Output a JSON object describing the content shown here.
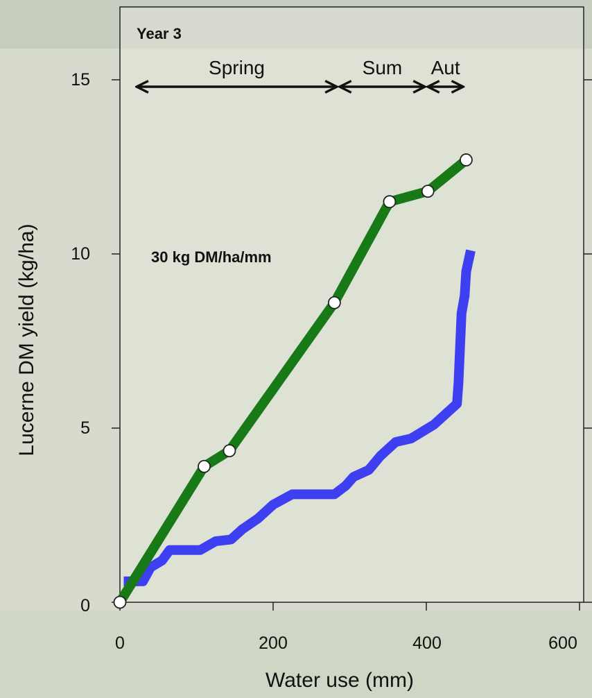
{
  "chart_data": {
    "type": "line",
    "title": "",
    "xlabel": "Water use (mm)",
    "ylabel": "Lucerne DM yield (kg/ha)",
    "xlim": [
      0,
      600
    ],
    "ylim": [
      0,
      15
    ],
    "x_ticks": [
      "0",
      "200",
      "400",
      "600"
    ],
    "y_ticks": [
      "0",
      "5",
      "10",
      "15"
    ],
    "grid": false,
    "series": [
      {
        "name": "",
        "color": "#177a17",
        "markers": true,
        "points": [
          [
            0,
            0
          ],
          [
            110,
            3.9
          ],
          [
            143,
            4.35
          ],
          [
            280,
            8.6
          ],
          [
            352,
            11.5
          ],
          [
            402,
            11.8
          ],
          [
            452,
            12.7
          ]
        ]
      },
      {
        "name": "",
        "color": "#3f3ff2",
        "markers": false,
        "points": [
          [
            5,
            0.6
          ],
          [
            30,
            0.6
          ],
          [
            40,
            1.0
          ],
          [
            55,
            1.2
          ],
          [
            65,
            1.5
          ],
          [
            105,
            1.5
          ],
          [
            125,
            1.75
          ],
          [
            145,
            1.8
          ],
          [
            160,
            2.1
          ],
          [
            180,
            2.4
          ],
          [
            200,
            2.8
          ],
          [
            225,
            3.1
          ],
          [
            280,
            3.1
          ],
          [
            295,
            3.35
          ],
          [
            305,
            3.6
          ],
          [
            325,
            3.8
          ],
          [
            340,
            4.2
          ],
          [
            360,
            4.6
          ],
          [
            380,
            4.7
          ],
          [
            395,
            4.9
          ],
          [
            410,
            5.1
          ],
          [
            425,
            5.4
          ],
          [
            440,
            5.7
          ],
          [
            442,
            6.3
          ],
          [
            446,
            8.3
          ],
          [
            450,
            8.8
          ],
          [
            452,
            9.5
          ],
          [
            455,
            9.8
          ],
          [
            458,
            10.1
          ]
        ]
      }
    ],
    "annotations": {
      "year_label": "Year 3",
      "slope_label": "30 kg DM/ha/mm",
      "seasons": [
        {
          "label": "Spring",
          "from": 20,
          "to": 285
        },
        {
          "label": "Sum",
          "from": 285,
          "to": 400
        },
        {
          "label": "Aut",
          "from": 400,
          "to": 450
        }
      ]
    }
  }
}
